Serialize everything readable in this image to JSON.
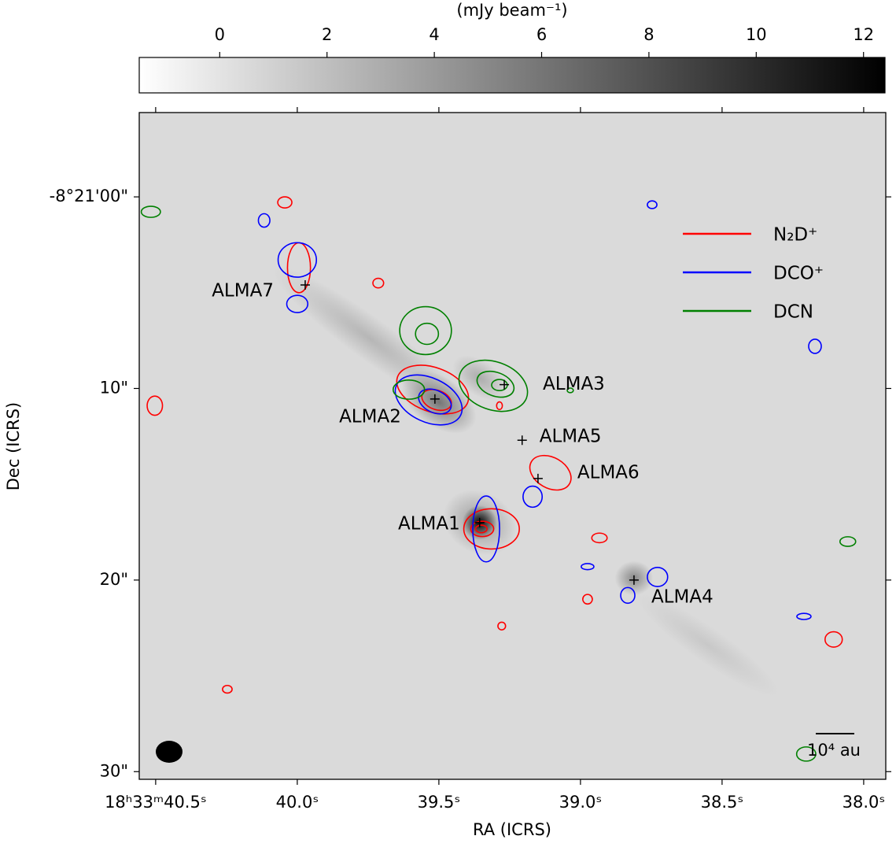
{
  "chart_data": {
    "type": "image",
    "colorbar": {
      "label": "(mJy beam⁻¹)",
      "lim": [
        -1.5,
        12.4
      ],
      "ticks": [
        0,
        2,
        4,
        6,
        8,
        10,
        12
      ],
      "cmap": [
        "#ffffff",
        "#000000"
      ]
    },
    "xlabel": "RA (ICRS)",
    "ylabel": "Dec (ICRS)",
    "xlim": [
      40.558,
      37.922
    ],
    "xticks": [
      {
        "value": 40.5,
        "label": "18ʰ33ᵐ40.5ˢ"
      },
      {
        "value": 40.0,
        "label": "40.0ˢ"
      },
      {
        "value": 39.5,
        "label": "39.5ˢ"
      },
      {
        "value": 39.0,
        "label": "39.0ˢ"
      },
      {
        "value": 38.5,
        "label": "38.5ˢ"
      },
      {
        "value": 38.0,
        "label": "38.0ˢ"
      }
    ],
    "ylim": [
      30.4,
      -4.4
    ],
    "yticks": [
      {
        "value": 0,
        "label": "-8°21'00\""
      },
      {
        "value": 10,
        "label": "10\""
      },
      {
        "value": 20,
        "label": "20\""
      },
      {
        "value": 30,
        "label": "30\""
      }
    ],
    "background": 0.5,
    "emission": [
      {
        "ra": 39.744,
        "dec": 7.4,
        "rx": 6.2,
        "ry": 1.1,
        "angle": 36,
        "peak": 2.5
      },
      {
        "ra": 38.55,
        "dec": 23.4,
        "rx": 4.5,
        "ry": 0.9,
        "angle": 35,
        "peak": 1.5
      },
      {
        "ra": 39.356,
        "dec": 9.45,
        "rx": 1.6,
        "ry": 0.9,
        "angle": 35,
        "peak": 3
      },
      {
        "ra": 39.5,
        "dec": 10.7,
        "rx": 2.2,
        "ry": 1.3,
        "angle": 35,
        "peak": 6
      },
      {
        "ra": 39.356,
        "dec": 17.0,
        "rx": 2.0,
        "ry": 1.6,
        "angle": 30,
        "peak": 4
      },
      {
        "ra": 39.356,
        "dec": 17.0,
        "rx": 0.9,
        "ry": 0.9,
        "angle": 0,
        "peak": 12
      },
      {
        "ra": 38.811,
        "dec": 19.9,
        "rx": 1.0,
        "ry": 0.9,
        "angle": 0,
        "peak": 5
      }
    ],
    "series": [
      {
        "name": "N₂D⁺",
        "color": "#ff0000",
        "shapes": [
          {
            "ra": 40.044,
            "dec": 0.29,
            "rx": 0.37,
            "ry": 0.29
          },
          {
            "ra": 39.994,
            "dec": 3.7,
            "rx": 0.6,
            "ry": 1.3
          },
          {
            "ra": 39.714,
            "dec": 4.5,
            "rx": 0.28,
            "ry": 0.25
          },
          {
            "ra": 40.503,
            "dec": 10.9,
            "rx": 0.4,
            "ry": 0.5
          },
          {
            "ra": 39.522,
            "dec": 10.06,
            "rx": 1.95,
            "ry": 1.15,
            "angle": 20
          },
          {
            "ra": 39.508,
            "dec": 10.6,
            "rx": 0.8,
            "ry": 0.5,
            "angle": 20
          },
          {
            "ra": 39.286,
            "dec": 10.9,
            "rx": 0.15,
            "ry": 0.2
          },
          {
            "ra": 39.106,
            "dec": 14.4,
            "rx": 1.15,
            "ry": 0.8,
            "angle": 30
          },
          {
            "ra": 39.314,
            "dec": 17.33,
            "rx": 1.45,
            "ry": 1.05
          },
          {
            "ra": 39.347,
            "dec": 17.33,
            "rx": 0.6,
            "ry": 0.4
          },
          {
            "ra": 39.35,
            "dec": 17.33,
            "rx": 0.3,
            "ry": 0.2
          },
          {
            "ra": 38.933,
            "dec": 17.8,
            "rx": 0.4,
            "ry": 0.25
          },
          {
            "ra": 38.975,
            "dec": 21.0,
            "rx": 0.25,
            "ry": 0.25
          },
          {
            "ra": 39.278,
            "dec": 22.4,
            "rx": 0.2,
            "ry": 0.2
          },
          {
            "ra": 38.106,
            "dec": 23.1,
            "rx": 0.45,
            "ry": 0.4
          },
          {
            "ra": 40.247,
            "dec": 25.7,
            "rx": 0.25,
            "ry": 0.2
          }
        ]
      },
      {
        "name": "DCO⁺",
        "color": "#0000ff",
        "shapes": [
          {
            "ra": 40.117,
            "dec": 1.23,
            "rx": 0.3,
            "ry": 0.35
          },
          {
            "ra": 38.747,
            "dec": 0.41,
            "rx": 0.25,
            "ry": 0.2
          },
          {
            "ra": 40.0,
            "dec": 3.29,
            "rx": 1.0,
            "ry": 0.9
          },
          {
            "ra": 40.0,
            "dec": 5.59,
            "rx": 0.55,
            "ry": 0.45
          },
          {
            "ra": 38.172,
            "dec": 7.8,
            "rx": 0.33,
            "ry": 0.37
          },
          {
            "ra": 39.536,
            "dec": 10.6,
            "rx": 1.85,
            "ry": 1.15,
            "angle": 25
          },
          {
            "ra": 39.514,
            "dec": 10.68,
            "rx": 0.9,
            "ry": 0.58,
            "angle": 25
          },
          {
            "ra": 39.169,
            "dec": 15.65,
            "rx": 0.5,
            "ry": 0.55
          },
          {
            "ra": 39.333,
            "dec": 17.33,
            "rx": 0.7,
            "ry": 1.72
          },
          {
            "ra": 38.975,
            "dec": 19.3,
            "rx": 0.33,
            "ry": 0.16
          },
          {
            "ra": 38.728,
            "dec": 19.84,
            "rx": 0.53,
            "ry": 0.5
          },
          {
            "ra": 38.833,
            "dec": 20.8,
            "rx": 0.37,
            "ry": 0.41
          },
          {
            "ra": 38.211,
            "dec": 21.9,
            "rx": 0.37,
            "ry": 0.16
          }
        ]
      },
      {
        "name": "DCN",
        "color": "#008000",
        "shapes": [
          {
            "ra": 40.517,
            "dec": 0.78,
            "rx": 0.5,
            "ry": 0.29
          },
          {
            "ra": 39.547,
            "dec": 6.98,
            "rx": 1.35,
            "ry": 1.25
          },
          {
            "ra": 39.542,
            "dec": 7.15,
            "rx": 0.6,
            "ry": 0.55
          },
          {
            "ra": 39.606,
            "dec": 10.06,
            "rx": 0.82,
            "ry": 0.5
          },
          {
            "ra": 39.308,
            "dec": 9.86,
            "rx": 1.85,
            "ry": 1.25,
            "angle": 20
          },
          {
            "ra": 39.3,
            "dec": 9.78,
            "rx": 1.0,
            "ry": 0.62,
            "angle": 20
          },
          {
            "ra": 39.286,
            "dec": 9.82,
            "rx": 0.41,
            "ry": 0.29
          },
          {
            "ra": 39.036,
            "dec": 10.1,
            "rx": 0.16,
            "ry": 0.12
          },
          {
            "ra": 38.056,
            "dec": 17.99,
            "rx": 0.41,
            "ry": 0.25
          },
          {
            "ra": 38.203,
            "dec": 29.08,
            "rx": 0.5,
            "ry": 0.37
          }
        ]
      }
    ],
    "sources": [
      {
        "name": "ALMA7",
        "ra": 39.972,
        "dec": 4.6
      },
      {
        "name": "ALMA2",
        "ra": 39.514,
        "dec": 10.55
      },
      {
        "name": "ALMA3",
        "ra": 39.269,
        "dec": 9.8
      },
      {
        "name": "ALMA5",
        "ra": 39.206,
        "dec": 12.7
      },
      {
        "name": "ALMA6",
        "ra": 39.15,
        "dec": 14.7
      },
      {
        "name": "ALMA1",
        "ra": 39.356,
        "dec": 17.0
      },
      {
        "name": "ALMA4",
        "ra": 38.811,
        "dec": 20.0
      }
    ],
    "scalebar_label": "10⁴ au"
  }
}
